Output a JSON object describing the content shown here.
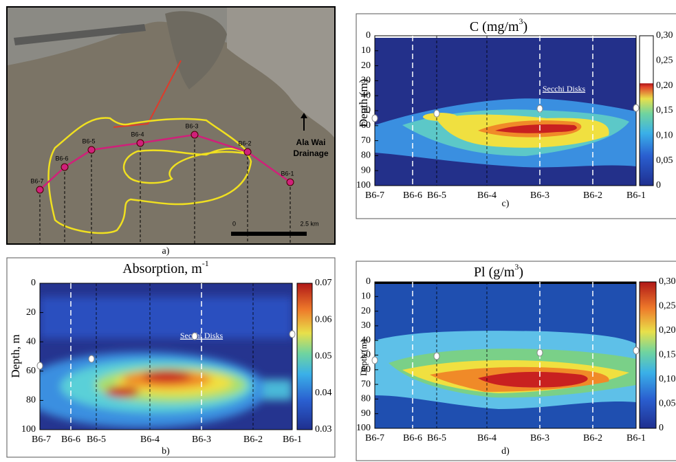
{
  "panel_a": {
    "label": "a)",
    "stations": [
      "B6-1",
      "B6-2",
      "B6-3",
      "B6-4",
      "B6-5",
      "B6-6",
      "B6-7"
    ],
    "annotation": [
      "Ala Wai",
      "Drainage"
    ],
    "scale_start": "0",
    "scale_end": "2.5 km"
  },
  "panel_b": {
    "label": "b)",
    "title": "Absorption, m",
    "title_superscript": "-1",
    "ylabel": "Depth, m",
    "yticks": [
      0,
      20,
      40,
      60,
      80,
      100
    ],
    "colorbar_ticks": [
      0.07,
      0.06,
      0.05,
      0.04,
      0.03
    ],
    "x_labels": [
      "B6-7",
      "B6-6",
      "B6-5",
      "B6-4",
      "B6-3",
      "B6-2",
      "B6-1"
    ],
    "annotation": "Secchi Disks"
  },
  "panel_c": {
    "label": "c)",
    "title": "C (mg/m",
    "title_superscript": "3",
    "title_end": ")",
    "ylabel": "Depth (m)",
    "yticks": [
      0,
      10,
      20,
      30,
      40,
      50,
      60,
      70,
      80,
      90,
      100
    ],
    "colorbar_ticks": [
      "0,30",
      "0,25",
      "0,20",
      "0,15",
      "0,10",
      "0,05",
      "0"
    ],
    "x_labels": [
      "B6-7",
      "B6-6",
      "B6-5",
      "B6-4",
      "B6-3",
      "B6-2",
      "B6-1"
    ],
    "annotation": "Secchi Disks"
  },
  "panel_d": {
    "label": "d)",
    "title": "Pl (g/m",
    "title_superscript": "3",
    "title_end": ")",
    "ylabel": "Depth (m)",
    "yticks": [
      0,
      10,
      20,
      30,
      40,
      50,
      60,
      70,
      80,
      90,
      100
    ],
    "colorbar_ticks": [
      "0,30",
      "0,25",
      "0,20",
      "0,15",
      "0,10",
      "0,05",
      "0"
    ],
    "x_labels": [
      "B6-7",
      "B6-6",
      "B6-5",
      "B6-4",
      "B6-3",
      "B6-2",
      "B6-1"
    ]
  }
}
